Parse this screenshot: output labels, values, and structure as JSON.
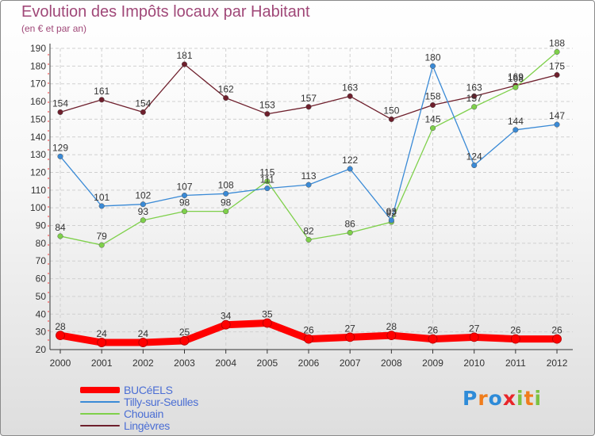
{
  "header": {
    "title": "Evolution des Impôts locaux par Habitant",
    "subtitle": "(en € et par an)"
  },
  "chart_data": {
    "type": "line",
    "title": "Evolution des Impôts locaux par Habitant",
    "subtitle": "(en € et par an)",
    "xlabel": "",
    "ylabel": "",
    "x": [
      "2000",
      "2001",
      "2002",
      "2003",
      "2004",
      "2005",
      "2006",
      "2007",
      "2008",
      "2009",
      "2010",
      "2011",
      "2012"
    ],
    "ylim": [
      20,
      190
    ],
    "yticks": [
      20,
      30,
      40,
      50,
      60,
      70,
      80,
      90,
      100,
      110,
      120,
      130,
      140,
      150,
      160,
      170,
      180,
      190
    ],
    "grid": true,
    "legend_position": "bottom-left",
    "series": [
      {
        "name": "BUCéELS",
        "color": "#ff0000",
        "values": [
          28,
          24,
          24,
          25,
          34,
          35,
          26,
          27,
          28,
          26,
          27,
          26,
          26
        ]
      },
      {
        "name": "Tilly-sur-Seulles",
        "color": "#3a8ad6",
        "values": [
          129,
          101,
          102,
          107,
          108,
          111,
          113,
          122,
          93,
          180,
          124,
          144,
          147
        ]
      },
      {
        "name": "Chouain",
        "color": "#7ed04a",
        "values": [
          84,
          79,
          93,
          98,
          98,
          115,
          82,
          86,
          92,
          145,
          157,
          168,
          188
        ]
      },
      {
        "name": "Lingèvres",
        "color": "#6e1f2c",
        "values": [
          154,
          161,
          154,
          181,
          162,
          153,
          157,
          163,
          150,
          158,
          163,
          169,
          175
        ]
      }
    ],
    "value_labels": [
      [
        "28",
        "24",
        "24",
        "25",
        "34",
        "35",
        "26",
        "27",
        "28",
        "26",
        "27",
        "26",
        "26"
      ],
      [
        "129",
        "101",
        "102",
        "107",
        "108",
        "111",
        "113",
        "122",
        "93",
        "180",
        "124",
        "144",
        "147"
      ],
      [
        "84",
        "79",
        "93",
        "98",
        "98",
        "115",
        "82",
        "86",
        "92",
        "145",
        "157",
        "168",
        "188"
      ],
      [
        "154",
        "161",
        "154",
        "181",
        "162",
        "153",
        "157",
        "163",
        "150",
        "158",
        "163",
        "169",
        "175"
      ]
    ]
  },
  "legend": {
    "items": [
      {
        "label": "BUCéELS",
        "color": "#ff0000"
      },
      {
        "label": "Tilly-sur-Seulles",
        "color": "#3a8ad6"
      },
      {
        "label": "Chouain",
        "color": "#7ed04a"
      },
      {
        "label": "Lingèvres",
        "color": "#6e1f2c"
      }
    ]
  },
  "logo": {
    "text": "Proxiti",
    "letters": [
      {
        "char": "P",
        "color": "#2e8bd8"
      },
      {
        "char": "r",
        "color": "#f07d1c"
      },
      {
        "char": "o",
        "color": "#2e8bd8"
      },
      {
        "char": "x",
        "color": "#e8262a"
      },
      {
        "char": "i",
        "color": "#7cc242"
      },
      {
        "char": "t",
        "color": "#f07d1c"
      },
      {
        "char": "i",
        "color": "#7cc242"
      }
    ]
  }
}
